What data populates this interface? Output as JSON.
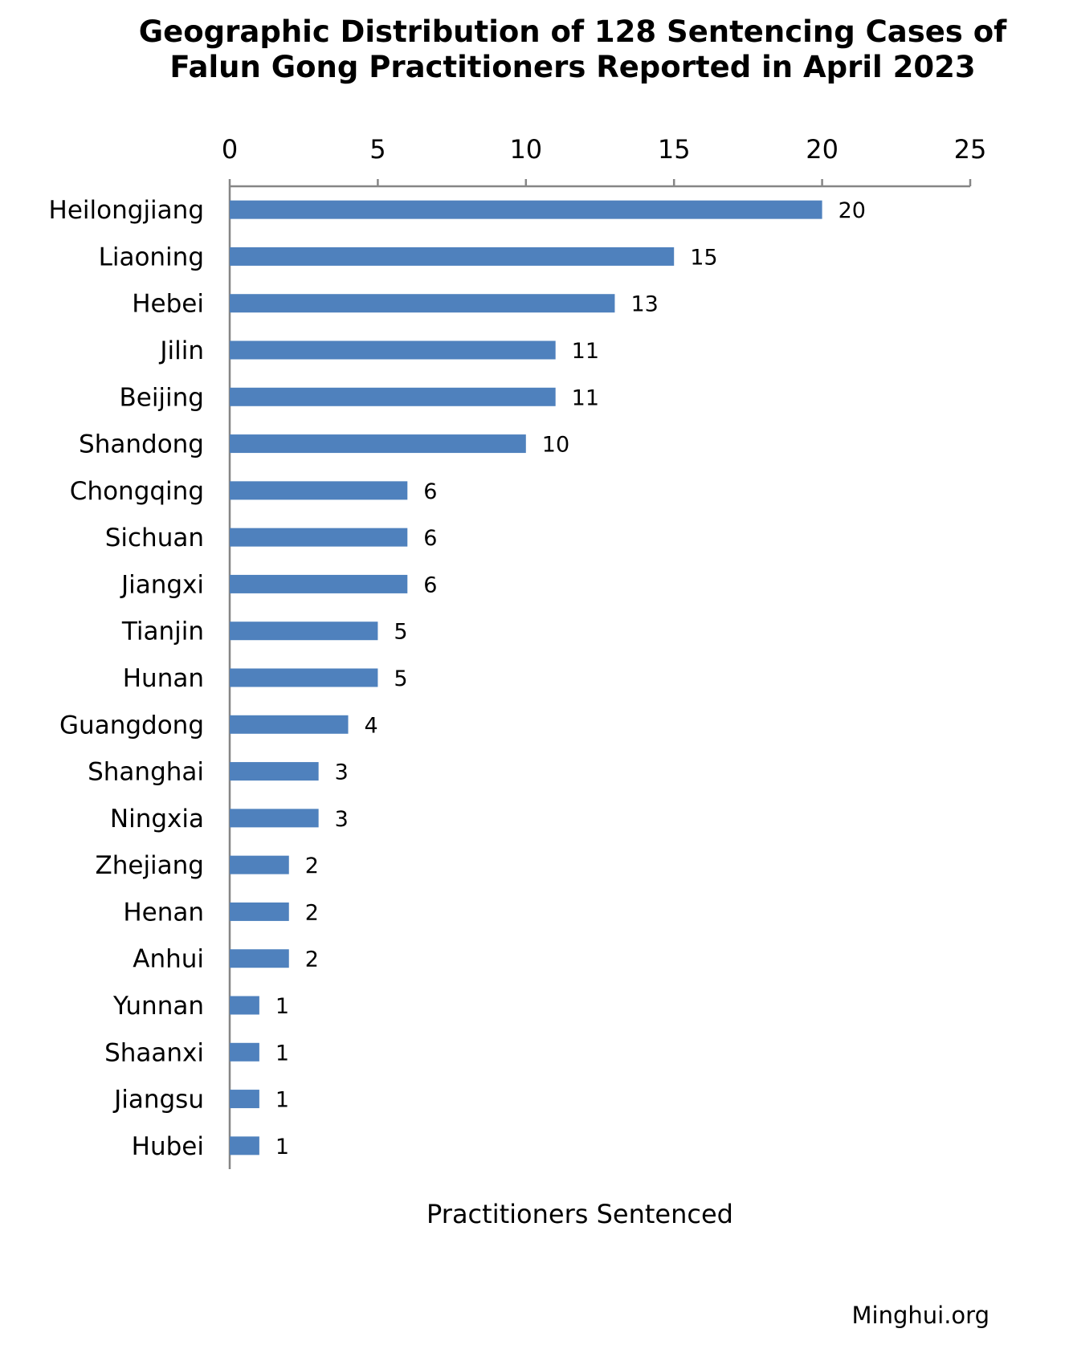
{
  "chart_data": {
    "type": "bar",
    "orientation": "horizontal",
    "title_lines": [
      "Geographic Distribution of 128 Sentencing Cases of",
      "Falun Gong Practitioners Reported in April 2023"
    ],
    "xlabel": "Practitioners Sentenced",
    "xlim": [
      0,
      25
    ],
    "xticks": [
      0,
      5,
      10,
      15,
      20,
      25
    ],
    "x_axis_position": "top",
    "grid": false,
    "bar_color": "#4f81bd",
    "categories": [
      "Heilongjiang",
      "Liaoning",
      "Hebei",
      "Jilin",
      "Beijing",
      "Shandong",
      "Chongqing",
      "Sichuan",
      "Jiangxi",
      "Tianjin",
      "Hunan",
      "Guangdong",
      "Shanghai",
      "Ningxia",
      "Zhejiang",
      "Henan",
      "Anhui",
      "Yunnan",
      "Shaanxi",
      "Jiangsu",
      "Hubei"
    ],
    "values": [
      20,
      15,
      13,
      11,
      11,
      10,
      6,
      6,
      6,
      5,
      5,
      4,
      3,
      3,
      2,
      2,
      2,
      1,
      1,
      1,
      1
    ],
    "source": "Minghui.org"
  }
}
